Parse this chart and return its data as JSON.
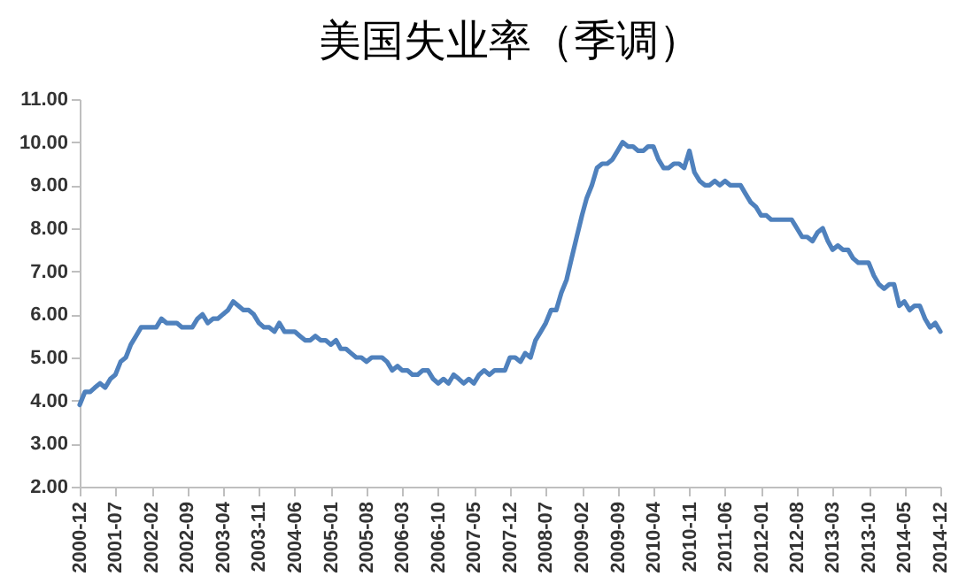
{
  "chart_data": {
    "type": "line",
    "title": "美国失业率（季调）",
    "x": [
      "2000-12",
      "2001-01",
      "2001-02",
      "2001-03",
      "2001-04",
      "2001-05",
      "2001-06",
      "2001-07",
      "2001-08",
      "2001-09",
      "2001-10",
      "2001-11",
      "2001-12",
      "2002-01",
      "2002-02",
      "2002-03",
      "2002-04",
      "2002-05",
      "2002-06",
      "2002-07",
      "2002-08",
      "2002-09",
      "2002-10",
      "2002-11",
      "2002-12",
      "2003-01",
      "2003-02",
      "2003-03",
      "2003-04",
      "2003-05",
      "2003-06",
      "2003-07",
      "2003-08",
      "2003-09",
      "2003-10",
      "2003-11",
      "2003-12",
      "2004-01",
      "2004-02",
      "2004-03",
      "2004-04",
      "2004-05",
      "2004-06",
      "2004-07",
      "2004-08",
      "2004-09",
      "2004-10",
      "2004-11",
      "2004-12",
      "2005-01",
      "2005-02",
      "2005-03",
      "2005-04",
      "2005-05",
      "2005-06",
      "2005-07",
      "2005-08",
      "2005-09",
      "2005-10",
      "2005-11",
      "2005-12",
      "2006-01",
      "2006-02",
      "2006-03",
      "2006-04",
      "2006-05",
      "2006-06",
      "2006-07",
      "2006-08",
      "2006-09",
      "2006-10",
      "2006-11",
      "2006-12",
      "2007-01",
      "2007-02",
      "2007-03",
      "2007-04",
      "2007-05",
      "2007-06",
      "2007-07",
      "2007-08",
      "2007-09",
      "2007-10",
      "2007-11",
      "2007-12",
      "2008-01",
      "2008-02",
      "2008-03",
      "2008-04",
      "2008-05",
      "2008-06",
      "2008-07",
      "2008-08",
      "2008-09",
      "2008-10",
      "2008-11",
      "2008-12",
      "2009-01",
      "2009-02",
      "2009-03",
      "2009-04",
      "2009-05",
      "2009-06",
      "2009-07",
      "2009-08",
      "2009-09",
      "2009-10",
      "2009-11",
      "2009-12",
      "2010-01",
      "2010-02",
      "2010-03",
      "2010-04",
      "2010-05",
      "2010-06",
      "2010-07",
      "2010-08",
      "2010-09",
      "2010-10",
      "2010-11",
      "2010-12",
      "2011-01",
      "2011-02",
      "2011-03",
      "2011-04",
      "2011-05",
      "2011-06",
      "2011-07",
      "2011-08",
      "2011-09",
      "2011-10",
      "2011-11",
      "2011-12",
      "2012-01",
      "2012-02",
      "2012-03",
      "2012-04",
      "2012-05",
      "2012-06",
      "2012-07",
      "2012-08",
      "2012-09",
      "2012-10",
      "2012-11",
      "2012-12",
      "2013-01",
      "2013-02",
      "2013-03",
      "2013-04",
      "2013-05",
      "2013-06",
      "2013-07",
      "2013-08",
      "2013-09",
      "2013-10",
      "2013-11",
      "2013-12",
      "2014-01",
      "2014-02",
      "2014-03",
      "2014-04",
      "2014-05",
      "2014-06",
      "2014-07",
      "2014-08",
      "2014-09",
      "2014-10",
      "2014-11",
      "2014-12"
    ],
    "series": [
      {
        "color": "#4f81bd",
        "values": [
          3.9,
          4.2,
          4.2,
          4.3,
          4.4,
          4.3,
          4.5,
          4.6,
          4.9,
          5.0,
          5.3,
          5.5,
          5.7,
          5.7,
          5.7,
          5.7,
          5.9,
          5.8,
          5.8,
          5.8,
          5.7,
          5.7,
          5.7,
          5.9,
          6.0,
          5.8,
          5.9,
          5.9,
          6.0,
          6.1,
          6.3,
          6.2,
          6.1,
          6.1,
          6.0,
          5.8,
          5.7,
          5.7,
          5.6,
          5.8,
          5.6,
          5.6,
          5.6,
          5.5,
          5.4,
          5.4,
          5.5,
          5.4,
          5.4,
          5.3,
          5.4,
          5.2,
          5.2,
          5.1,
          5.0,
          5.0,
          4.9,
          5.0,
          5.0,
          5.0,
          4.9,
          4.7,
          4.8,
          4.7,
          4.7,
          4.6,
          4.6,
          4.7,
          4.7,
          4.5,
          4.4,
          4.5,
          4.4,
          4.6,
          4.5,
          4.4,
          4.5,
          4.4,
          4.6,
          4.7,
          4.6,
          4.7,
          4.7,
          4.7,
          5.0,
          5.0,
          4.9,
          5.1,
          5.0,
          5.4,
          5.6,
          5.8,
          6.1,
          6.1,
          6.5,
          6.8,
          7.3,
          7.8,
          8.3,
          8.7,
          9.0,
          9.4,
          9.5,
          9.5,
          9.6,
          9.8,
          10.0,
          9.9,
          9.9,
          9.8,
          9.8,
          9.9,
          9.9,
          9.6,
          9.4,
          9.4,
          9.5,
          9.5,
          9.4,
          9.8,
          9.3,
          9.1,
          9.0,
          9.0,
          9.1,
          9.0,
          9.1,
          9.0,
          9.0,
          9.0,
          8.8,
          8.6,
          8.5,
          8.3,
          8.3,
          8.2,
          8.2,
          8.2,
          8.2,
          8.2,
          8.0,
          7.8,
          7.8,
          7.7,
          7.9,
          8.0,
          7.7,
          7.5,
          7.6,
          7.5,
          7.5,
          7.3,
          7.2,
          7.2,
          7.2,
          6.9,
          6.7,
          6.6,
          6.7,
          6.7,
          6.2,
          6.3,
          6.1,
          6.2,
          6.2,
          5.9,
          5.7,
          5.8,
          5.6
        ]
      }
    ],
    "xlim": [
      "2000-12",
      "2014-12"
    ],
    "xticks": [
      "2000-12",
      "2001-07",
      "2002-02",
      "2002-09",
      "2003-04",
      "2003-11",
      "2004-06",
      "2005-01",
      "2005-08",
      "2006-03",
      "2006-10",
      "2007-05",
      "2007-12",
      "2008-07",
      "2009-02",
      "2009-09",
      "2010-04",
      "2010-11",
      "2011-06",
      "2012-01",
      "2012-08",
      "2013-03",
      "2013-10",
      "2014-05",
      "2014-12"
    ],
    "ylim": [
      2,
      11
    ],
    "yticks": [
      {
        "value": 2,
        "label": "2.00"
      },
      {
        "value": 3,
        "label": "3.00"
      },
      {
        "value": 4,
        "label": "4.00"
      },
      {
        "value": 5,
        "label": "5.00"
      },
      {
        "value": 6,
        "label": "6.00"
      },
      {
        "value": 7,
        "label": "7.00"
      },
      {
        "value": 8,
        "label": "8.00"
      },
      {
        "value": 9,
        "label": "9.00"
      },
      {
        "value": 10,
        "label": "10.00"
      },
      {
        "value": 11,
        "label": "11.00"
      }
    ],
    "grid": false,
    "marker": "none",
    "line_style": "solid"
  }
}
